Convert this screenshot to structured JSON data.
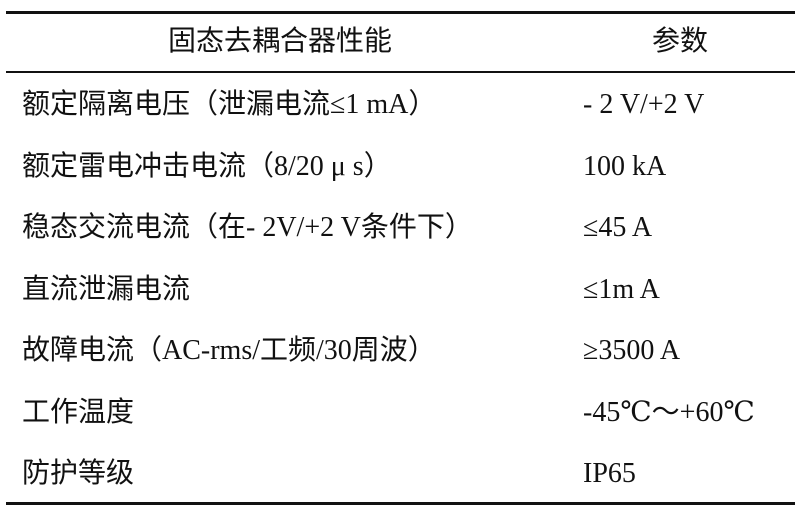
{
  "table": {
    "headers": [
      "固态去耦合器性能",
      "参数"
    ],
    "rows": [
      [
        "额定隔离电压（泄漏电流≤1 mA）",
        "- 2 V/+2 V"
      ],
      [
        "额定雷电冲击电流（8/20 μ s）",
        "100 kA"
      ],
      [
        "稳态交流电流（在- 2V/+2 V条件下）",
        "≤45 A"
      ],
      [
        "直流泄漏电流",
        "≤1m A"
      ],
      [
        "故障电流（AC-rms/工频/30周波）",
        "≥3500 A"
      ],
      [
        "工作温度",
        "-45℃～+60℃"
      ],
      [
        "防护等级",
        "IP65"
      ]
    ]
  }
}
